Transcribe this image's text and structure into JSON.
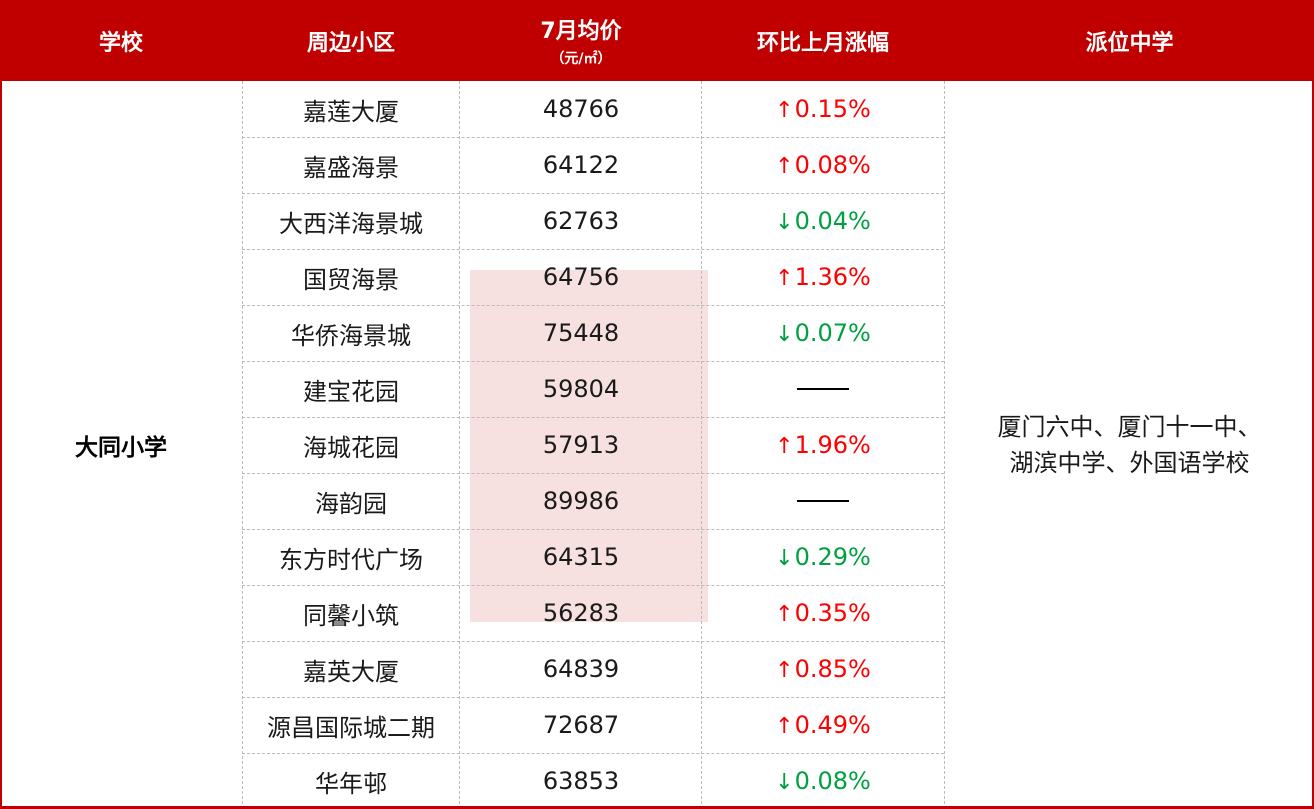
{
  "header": {
    "col_school": "学校",
    "col_community": "周边小区",
    "col_price": "7月均价",
    "col_price_unit": "（元/㎡）",
    "col_change": "环比上月涨幅",
    "col_middle_school": "派位中学"
  },
  "school_name": "大同小学",
  "middle_schools_line1": "厦门六中、厦门十一中、",
  "middle_schools_line2": "湖滨中学、外国语学校",
  "colors": {
    "header_bg": "#c00000",
    "up": "#ff0000",
    "down": "#00a040"
  },
  "rows": [
    {
      "name": "嘉莲大厦",
      "price": "48766",
      "arrow": "↑",
      "change": "0.15%",
      "dir": "up"
    },
    {
      "name": "嘉盛海景",
      "price": "64122",
      "arrow": "↑",
      "change": "0.08%",
      "dir": "up"
    },
    {
      "name": "大西洋海景城",
      "price": "62763",
      "arrow": "↓",
      "change": "0.04%",
      "dir": "down"
    },
    {
      "name": "国贸海景",
      "price": "64756",
      "arrow": "↑",
      "change": "1.36%",
      "dir": "up"
    },
    {
      "name": "华侨海景城",
      "price": "75448",
      "arrow": "↓",
      "change": "0.07%",
      "dir": "down"
    },
    {
      "name": "建宝花园",
      "price": "59804",
      "arrow": "",
      "change": "",
      "dir": "none"
    },
    {
      "name": "海城花园",
      "price": "57913",
      "arrow": "↑",
      "change": "1.96%",
      "dir": "up"
    },
    {
      "name": "海韵园",
      "price": "89986",
      "arrow": "",
      "change": "",
      "dir": "none"
    },
    {
      "name": "东方时代广场",
      "price": "64315",
      "arrow": "↓",
      "change": "0.29%",
      "dir": "down"
    },
    {
      "name": "同馨小筑",
      "price": "56283",
      "arrow": "↑",
      "change": "0.35%",
      "dir": "up"
    },
    {
      "name": "嘉英大厦",
      "price": "64839",
      "arrow": "↑",
      "change": "0.85%",
      "dir": "up"
    },
    {
      "name": "源昌国际城二期",
      "price": "72687",
      "arrow": "↑",
      "change": "0.49%",
      "dir": "up"
    },
    {
      "name": "华年邨",
      "price": "63853",
      "arrow": "↓",
      "change": "0.08%",
      "dir": "down"
    }
  ]
}
